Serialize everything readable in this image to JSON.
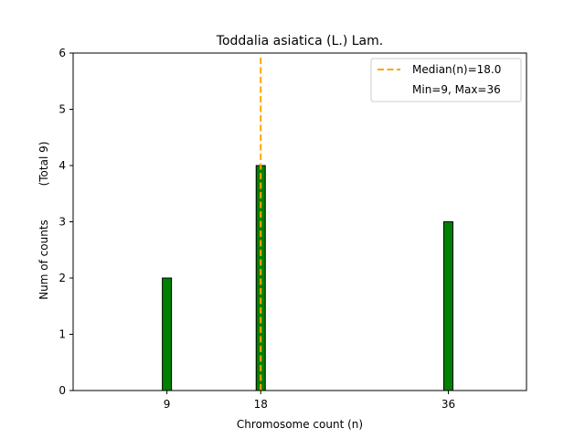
{
  "chart_data": {
    "type": "bar",
    "title": "Toddalia asiatica (L.) Lam.",
    "xlabel": "Chromosome count (n)",
    "ylabel": "Num of counts",
    "ylabel_total": "(Total 9)",
    "x": [
      9,
      18,
      36
    ],
    "x_tick_labels": [
      "9",
      "18",
      "36"
    ],
    "values": [
      2,
      4,
      3
    ],
    "bar_color": "#008000",
    "bar_edge_color": "#000000",
    "xlim": [
      0,
      43.5
    ],
    "ylim": [
      0,
      6
    ],
    "y_ticks": [
      0,
      1,
      2,
      3,
      4,
      5,
      6
    ],
    "median": 18.0,
    "median_color": "#FFA500",
    "legend": {
      "position": "top-right",
      "median_label": "Median(n)=18.0",
      "minmax_label": "Min=9, Max=36"
    },
    "grid": false
  }
}
